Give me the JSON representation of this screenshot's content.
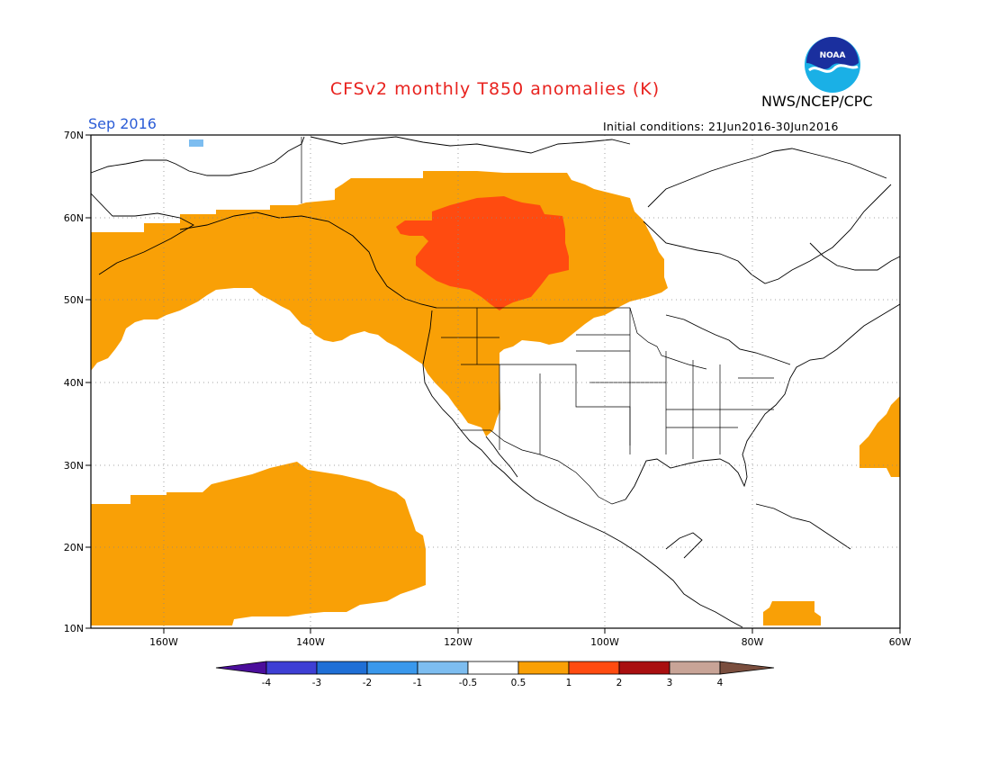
{
  "header": {
    "title": "CFSv2 monthly T850 anomalies (K)",
    "agency": "NWS/NCEP/CPC",
    "logo_text": "NOAA",
    "valid_month": "Sep 2016",
    "initial_conditions": "Initial conditions: 21Jun2016-30Jun2016"
  },
  "map": {
    "lat_labels": [
      "70N",
      "60N",
      "50N",
      "40N",
      "30N",
      "20N",
      "10N"
    ],
    "lon_labels": [
      "160W",
      "140W",
      "120W",
      "100W",
      "80W",
      "60W"
    ]
  },
  "colorbar": {
    "labels": [
      "-4",
      "-3",
      "-2",
      "-1",
      "-0.5",
      "0.5",
      "1",
      "2",
      "3",
      "4"
    ],
    "colors": [
      "#4b0e9b",
      "#3e3fd4",
      "#1f6fd6",
      "#3a98ec",
      "#7dbdf0",
      "#ffffff",
      "#f9a006",
      "#ff4b10",
      "#a90f10",
      "#c8a497",
      "#7a4e3e"
    ]
  },
  "colors": {
    "anom_0_5_to_1": "#f9a006",
    "anom_1_to_2": "#ff4b10",
    "anom_minus1_to_minus0_5": "#7dbdf0",
    "title": "#e8221e",
    "valid_month": "#2b5cd6"
  }
}
